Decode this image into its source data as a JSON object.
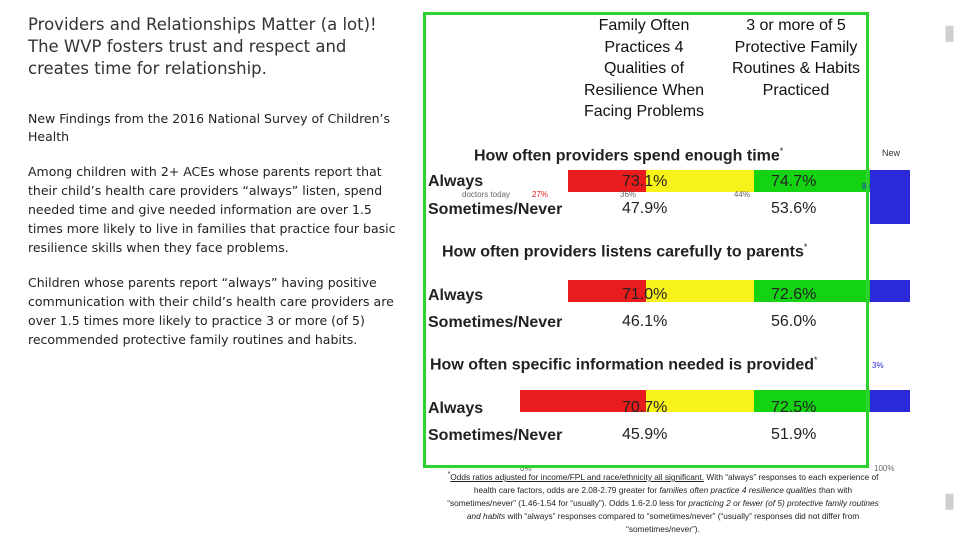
{
  "left": {
    "title": "Providers and Relationships Matter (a lot)! The WVP fosters trust and respect and creates time for relationship.",
    "subheading": "New Findings from the 2016 National Survey of Children’s Health",
    "para1": "Among children with 2+ ACEs whose parents report that their child’s health care providers “always” listen, spend needed time and give needed information are over 1.5 times more likely to live in families that practice four basic resilience skills when they face problems.",
    "para2": "Children whose parents report “always” having positive communication with their child’s health care providers are over 1.5 times more likely to practice 3 or more (of 5) recommended protective family routines and habits."
  },
  "table": {
    "col1_header": "Family Often Practices 4 Qualities of Resilience When Facing Problems",
    "col2_header": "3 or more of 5 Protective Family Routines & Habits Practiced",
    "sections": [
      {
        "heading": "How often providers spend enough time",
        "mark": "*",
        "rows": [
          {
            "label": "Always",
            "col1": "73.1%",
            "col2": "74.7%"
          },
          {
            "label": "Sometimes/Never",
            "col1": "47.9%",
            "col2": "53.6%"
          }
        ]
      },
      {
        "heading": "How often providers listens carefully to parents",
        "mark": "*",
        "rows": [
          {
            "label": "Always",
            "col1": "71.0%",
            "col2": "72.6%"
          },
          {
            "label": "Sometimes/Never",
            "col1": "46.1%",
            "col2": "56.0%"
          }
        ]
      },
      {
        "heading": "How often specific information needed is provided",
        "mark": "*",
        "rows": [
          {
            "label": "Always",
            "col1": "70.7%",
            "col2": "72.5%"
          },
          {
            "label": "Sometimes/Never",
            "col1": "45.9%",
            "col2": "51.9%"
          }
        ]
      }
    ]
  },
  "footnote": {
    "mark": "*",
    "l1a": "Odds ratios adjusted for income/FPL and race/ethnicity all significant.",
    "l1b": " With “always” responses to each experience of",
    "l2a": "health care factors, odds are 2.08-2.79 greater for ",
    "l2b": "families often practice 4 resilience qualities",
    "l2c": " than with",
    "l3a": "“sometimes/never” (1.46-1.54 for “usually”). Odds 1.6-2.0 less for ",
    "l3b": "practicing 2 or fewer (of 5) protective family routines",
    "l4a": "and habits",
    "l4b": " with “always” responses compared to “sometimes/never” (“usually” responses did not differ from",
    "l5": "“sometimes/never”)."
  },
  "background": {
    "label_new": "New",
    "label_doctors": "doctors today",
    "pct_a": "27%",
    "pct_b": "36%",
    "pct_c": "44%",
    "pct_d": "8%",
    "pct_e": "3%",
    "axis_0": "0%",
    "axis_100": "100%"
  },
  "colors": {
    "green_border": "#2fd12f",
    "red": "#e81c1c",
    "yellow": "#f7f21a",
    "green": "#13d313",
    "blue": "#2a2ad8"
  }
}
